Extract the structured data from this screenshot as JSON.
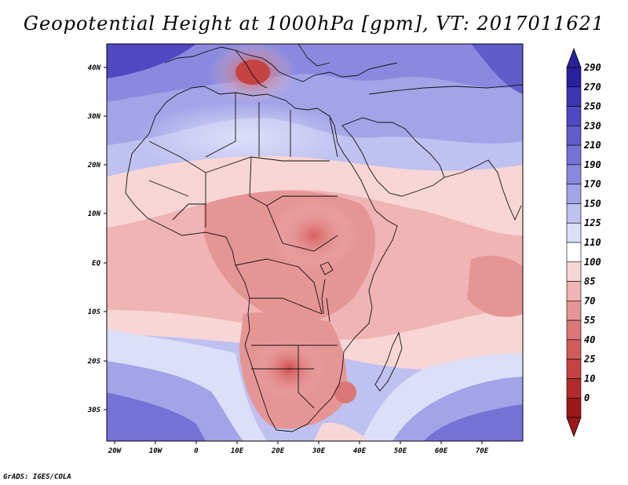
{
  "title": "Geopotential Height at 1000hPa [gpm], VT: 2017011621",
  "credit": "GrADS: IGES/COLA",
  "map": {
    "lon_labels": [
      "20W",
      "10W",
      "0",
      "10E",
      "20E",
      "30E",
      "40E",
      "50E",
      "60E",
      "70E"
    ],
    "lat_labels": [
      "40N",
      "30N",
      "20N",
      "10N",
      "EQ",
      "10S",
      "20S",
      "30S"
    ]
  },
  "colorbar": {
    "levels": [
      "290",
      "270",
      "250",
      "230",
      "210",
      "190",
      "170",
      "150",
      "125",
      "110",
      "100",
      "85",
      "70",
      "55",
      "40",
      "25",
      "10",
      "0"
    ],
    "colors_top_to_bottom": [
      "#2a1f9e",
      "#3d35b3",
      "#5048c2",
      "#615ccb",
      "#7572d6",
      "#8b89df",
      "#a3a3e8",
      "#bfc1f0",
      "#dcdff8",
      "#ffffff",
      "#f8d6d6",
      "#f0b4b4",
      "#e69595",
      "#db7777",
      "#d15b5b",
      "#c54343",
      "#b32a2a",
      "#9c1818"
    ]
  }
}
